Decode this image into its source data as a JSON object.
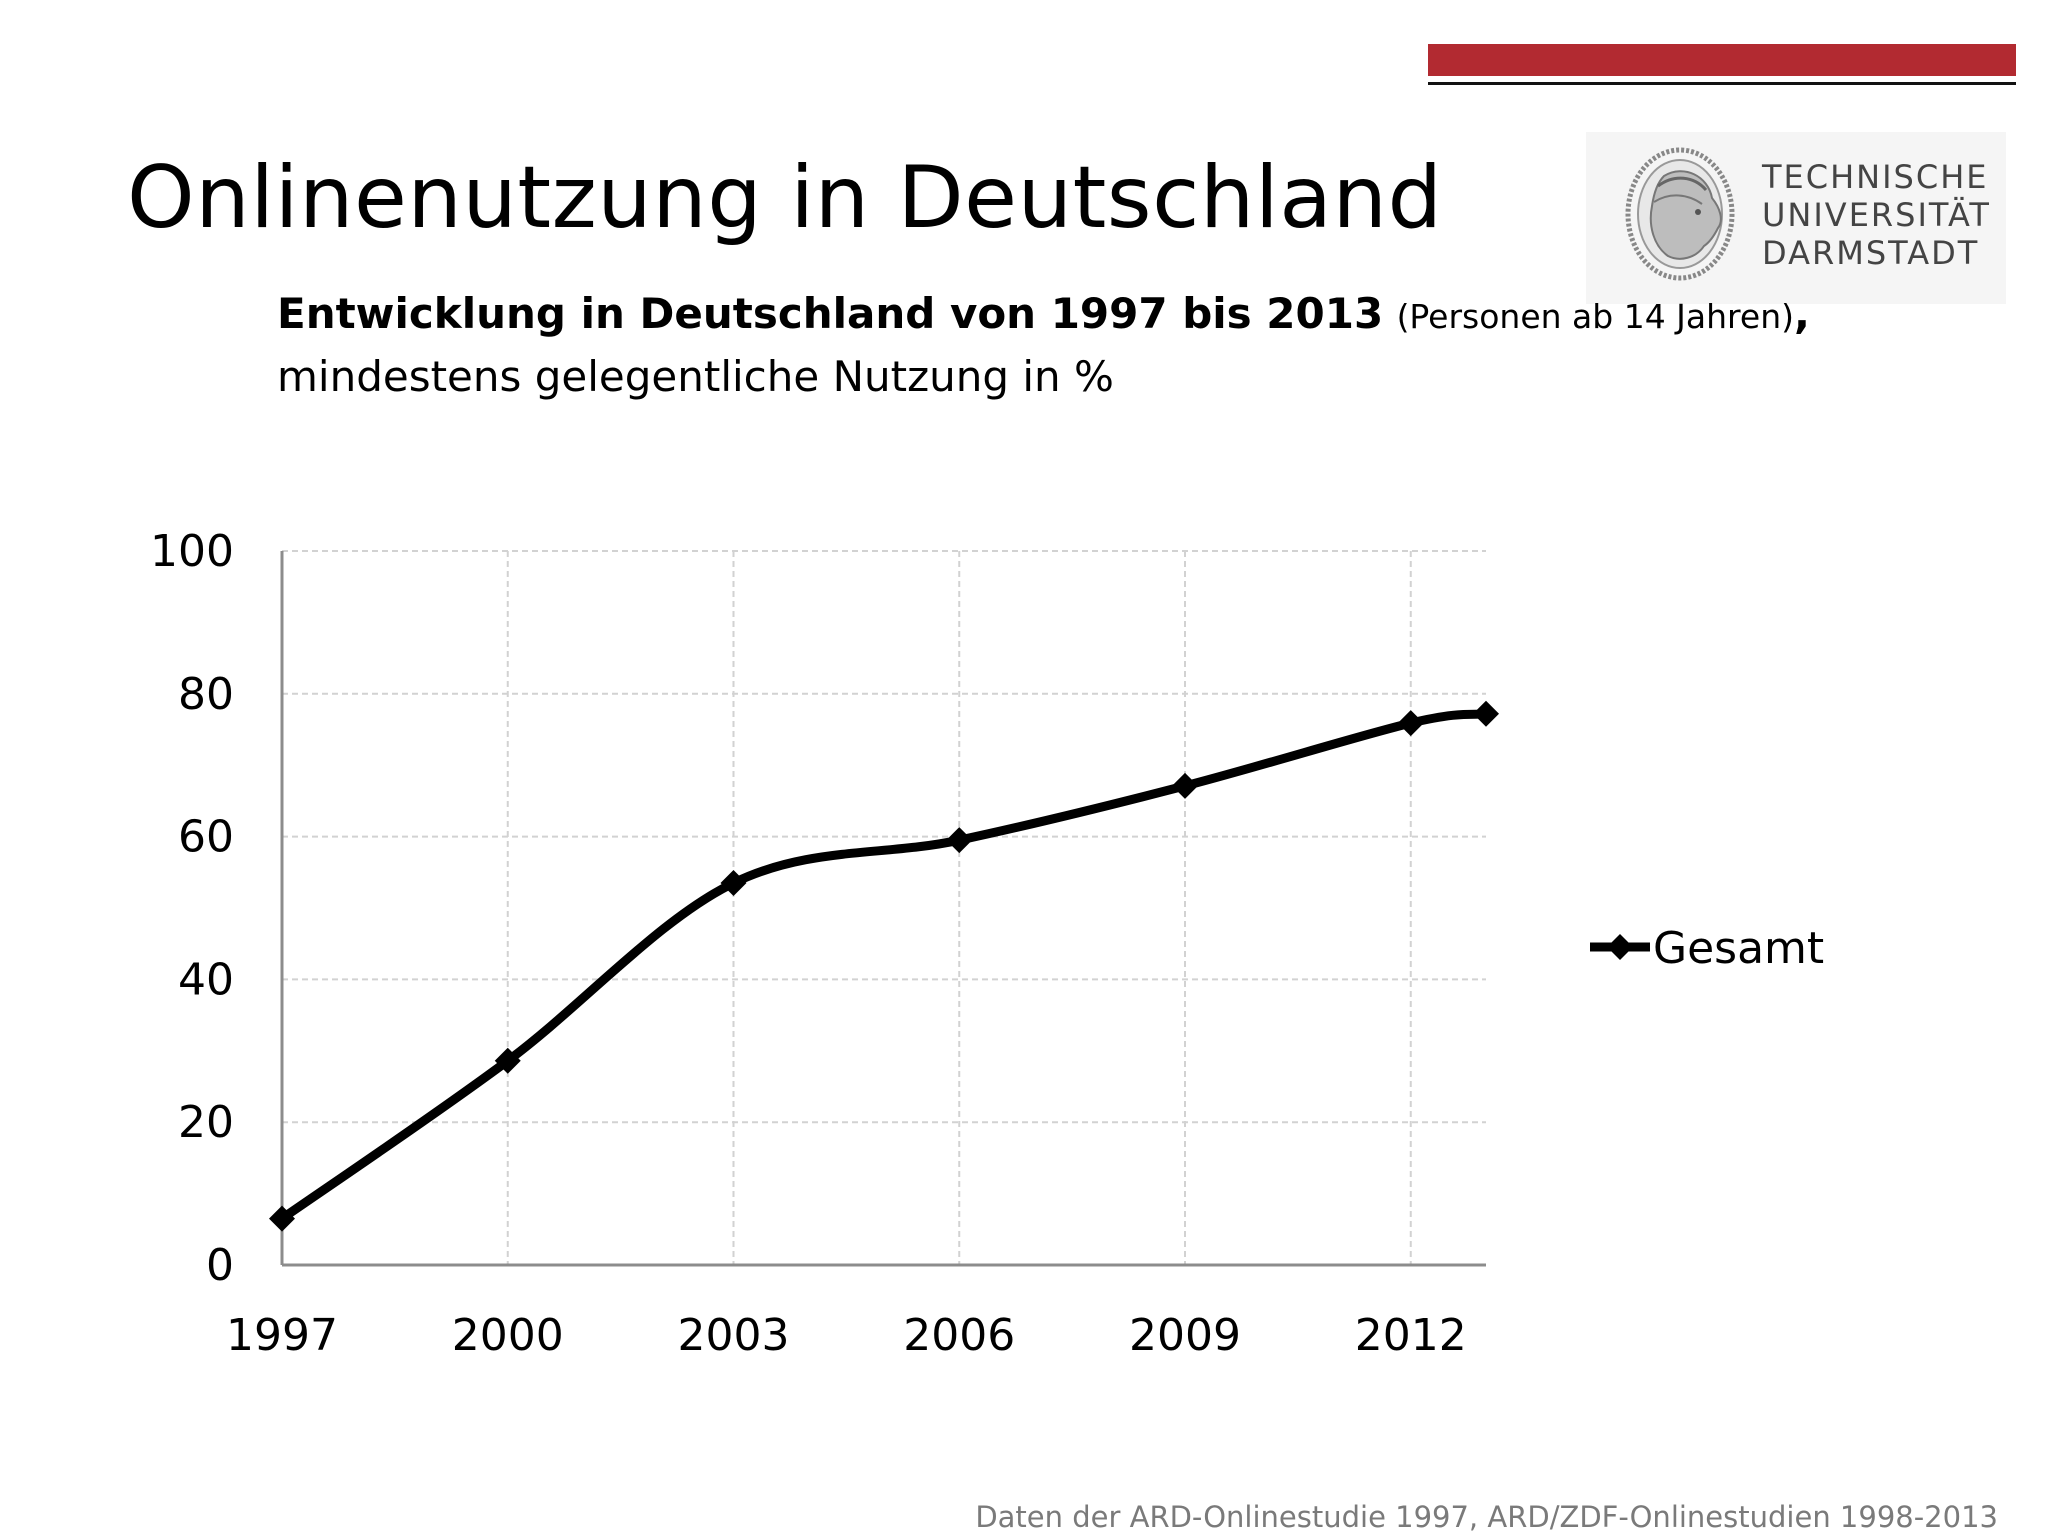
{
  "slide": {
    "title": "Onlinenutzung in Deutschland",
    "accent_color": "#b22a31",
    "subtitle_bold": "Entwicklung in Deutschland von 1997 bis 2013",
    "subtitle_paren": "(Personen ab 14 Jahren)",
    "subtitle_comma": ",",
    "subtitle_line2": "mindestens gelegentliche Nutzung in %",
    "footnote": "Daten der ARD-Onlinestudie 1997, ARD/ZDF-Onlinestudien 1998-2013"
  },
  "logo": {
    "line1": "TECHNISCHE",
    "line2": "UNIVERSITÄT",
    "line3": "DARMSTADT",
    "icon": "athena-head-seal-icon"
  },
  "chart_data": {
    "type": "line",
    "x": [
      1997,
      2000,
      2003,
      2006,
      2009,
      2012,
      2013
    ],
    "series": [
      {
        "name": "Gesamt",
        "values": [
          6.5,
          28.6,
          53.5,
          59.5,
          67.1,
          75.9,
          77.2
        ],
        "color": "#000000",
        "marker": "diamond"
      }
    ],
    "xticks": [
      "1997",
      "2000",
      "2003",
      "2006",
      "2009",
      "2012"
    ],
    "yticks": [
      "0",
      "20",
      "40",
      "60",
      "80",
      "100"
    ],
    "xlim": [
      1997,
      2013
    ],
    "ylim": [
      0,
      100
    ],
    "grid": true,
    "legend_position": "right",
    "smooth": true
  }
}
